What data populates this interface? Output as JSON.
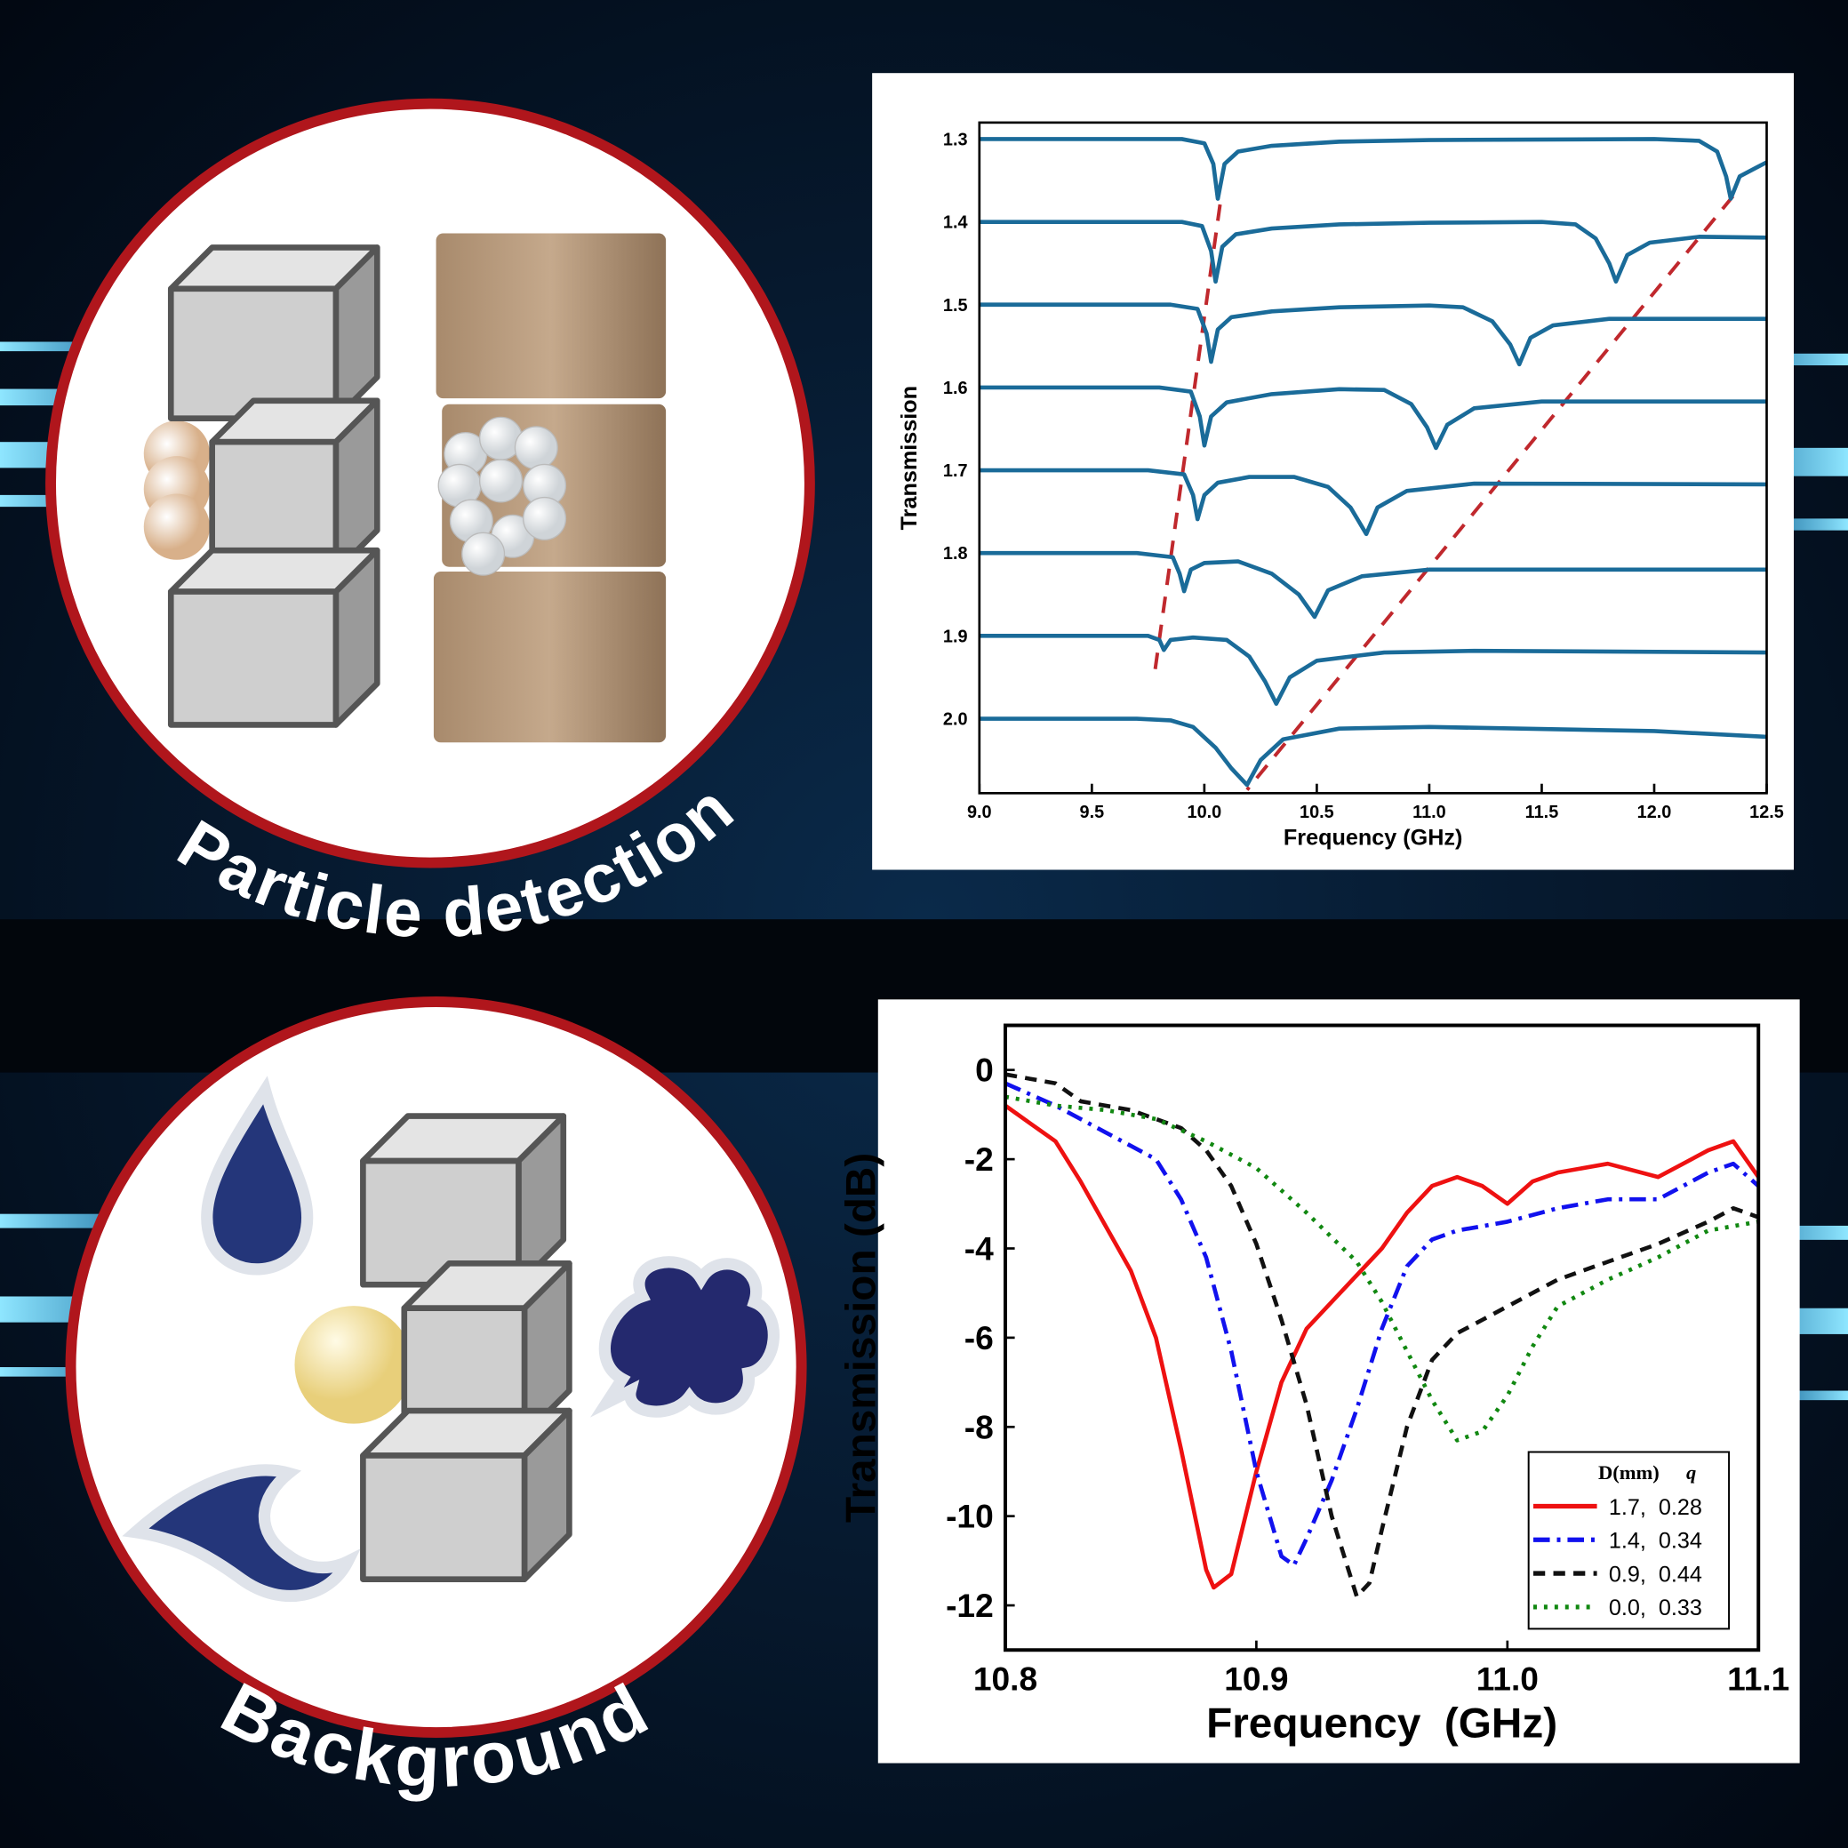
{
  "labels": [
    "Particle detection",
    "Background"
  ],
  "chart_data": [
    {
      "type": "line",
      "xlabel": "Frequency (GHz)",
      "ylabel": "Transmission",
      "color": "#1a6b99",
      "y_inverted": true,
      "xlim": [
        9.0,
        12.5
      ],
      "ylim": [
        1.28,
        2.09
      ],
      "xticks": [
        {
          "value": 9,
          "label": "9.0"
        },
        9.5,
        {
          "value": 10,
          "label": "10.0"
        },
        10.5,
        {
          "value": 11,
          "label": "11.0"
        },
        11.5,
        {
          "value": 12,
          "label": "12.0"
        },
        12.5
      ],
      "yticks": [
        1.3,
        1.4,
        1.5,
        1.6,
        1.7,
        1.8,
        1.9,
        {
          "value": 2,
          "label": "2.0"
        }
      ],
      "series": [
        {
          "x": [
            9.0,
            9.9,
            10.0,
            10.04,
            10.06,
            10.09,
            10.15,
            10.3,
            10.6,
            11.0,
            12.0,
            12.2,
            12.28,
            12.32,
            12.34,
            12.38,
            12.45,
            12.5
          ],
          "values": [
            1.3,
            1.3,
            1.305,
            1.33,
            1.372,
            1.33,
            1.315,
            1.308,
            1.303,
            1.301,
            1.3,
            1.302,
            1.315,
            1.345,
            1.372,
            1.345,
            1.335,
            1.328
          ]
        },
        {
          "x": [
            9.0,
            9.9,
            9.99,
            10.03,
            10.05,
            10.08,
            10.14,
            10.3,
            10.6,
            11.0,
            11.5,
            11.65,
            11.74,
            11.8,
            11.83,
            11.88,
            11.98,
            12.2,
            12.5
          ],
          "values": [
            1.4,
            1.4,
            1.405,
            1.435,
            1.472,
            1.43,
            1.415,
            1.408,
            1.403,
            1.401,
            1.4,
            1.403,
            1.42,
            1.45,
            1.472,
            1.44,
            1.425,
            1.418,
            1.419
          ]
        },
        {
          "x": [
            9.0,
            9.85,
            9.97,
            10.01,
            10.03,
            10.06,
            10.12,
            10.3,
            10.6,
            11.0,
            11.15,
            11.28,
            11.36,
            11.4,
            11.45,
            11.55,
            11.8,
            12.5
          ],
          "values": [
            1.5,
            1.5,
            1.505,
            1.535,
            1.569,
            1.53,
            1.515,
            1.508,
            1.503,
            1.501,
            1.503,
            1.52,
            1.548,
            1.572,
            1.54,
            1.525,
            1.517,
            1.517
          ]
        },
        {
          "x": [
            9.0,
            9.8,
            9.94,
            9.98,
            10.0,
            10.03,
            10.1,
            10.3,
            10.6,
            10.8,
            10.92,
            10.99,
            11.03,
            11.08,
            11.2,
            11.5,
            12.5
          ],
          "values": [
            1.6,
            1.6,
            1.605,
            1.635,
            1.67,
            1.635,
            1.618,
            1.608,
            1.602,
            1.603,
            1.62,
            1.648,
            1.673,
            1.645,
            1.625,
            1.617,
            1.617
          ]
        },
        {
          "x": [
            9.0,
            9.75,
            9.91,
            9.95,
            9.97,
            10.0,
            10.06,
            10.2,
            10.4,
            10.55,
            10.65,
            10.72,
            10.77,
            10.9,
            11.2,
            12.5
          ],
          "values": [
            1.7,
            1.7,
            1.705,
            1.73,
            1.759,
            1.73,
            1.715,
            1.708,
            1.708,
            1.72,
            1.745,
            1.777,
            1.745,
            1.725,
            1.716,
            1.717
          ]
        },
        {
          "x": [
            9.0,
            9.7,
            9.86,
            9.89,
            9.91,
            9.94,
            10.0,
            10.15,
            10.3,
            10.42,
            10.49,
            10.55,
            10.7,
            11.0,
            12.5
          ],
          "values": [
            1.8,
            1.8,
            1.805,
            1.825,
            1.846,
            1.82,
            1.812,
            1.81,
            1.825,
            1.85,
            1.877,
            1.845,
            1.828,
            1.82,
            1.82
          ]
        },
        {
          "x": [
            9.0,
            9.75,
            9.8,
            9.82,
            9.85,
            9.95,
            10.1,
            10.2,
            10.27,
            10.32,
            10.38,
            10.5,
            10.8,
            11.2,
            12.5
          ],
          "values": [
            1.9,
            1.9,
            1.905,
            1.917,
            1.905,
            1.902,
            1.905,
            1.925,
            1.955,
            1.982,
            1.95,
            1.93,
            1.92,
            1.918,
            1.92
          ]
        },
        {
          "x": [
            9.0,
            9.7,
            9.85,
            9.95,
            10.05,
            10.12,
            10.19,
            10.25,
            10.35,
            10.6,
            11.0,
            12.0,
            12.5
          ],
          "values": [
            2.0,
            2.0,
            2.002,
            2.01,
            2.035,
            2.06,
            2.08,
            2.05,
            2.025,
            2.012,
            2.01,
            2.015,
            2.022
          ]
        }
      ],
      "guides": [
        {
          "color": "#c0282d",
          "x": [
            10.07,
            9.78
          ],
          "values": [
            1.379,
            1.943
          ]
        },
        {
          "color": "#c0282d",
          "x": [
            12.35,
            10.19
          ],
          "values": [
            1.369,
            2.086
          ]
        }
      ]
    },
    {
      "type": "line",
      "xlabel": "Frequency  (GHz)",
      "ylabel": "Transmission (dB)",
      "xlim": [
        10.8,
        11.1
      ],
      "ylim": [
        -13,
        1
      ],
      "xticks": [
        10.8,
        10.9,
        {
          "value": 11,
          "label": "11.0"
        },
        11.1
      ],
      "yticks": [
        0,
        -2,
        -4,
        -6,
        -8,
        -10,
        -12
      ],
      "legend": "lower right",
      "legend_header": [
        "D(mm)",
        "q"
      ],
      "series": [
        {
          "name": "1.7,  0.28",
          "color": "#ee1111",
          "style": "solid",
          "x": [
            10.8,
            10.81,
            10.82,
            10.83,
            10.84,
            10.85,
            10.86,
            10.87,
            10.88,
            10.883,
            10.89,
            10.9,
            10.91,
            10.92,
            10.93,
            10.94,
            10.95,
            10.96,
            10.97,
            10.98,
            10.99,
            11.0,
            11.01,
            11.02,
            11.04,
            11.06,
            11.07,
            11.08,
            11.09,
            11.1
          ],
          "values": [
            -0.8,
            -1.2,
            -1.6,
            -2.5,
            -3.5,
            -4.5,
            -6,
            -8.5,
            -11.2,
            -11.6,
            -11.3,
            -9,
            -7,
            -5.8,
            -5.2,
            -4.6,
            -4.0,
            -3.2,
            -2.6,
            -2.4,
            -2.6,
            -3.0,
            -2.5,
            -2.3,
            -2.1,
            -2.4,
            -2.1,
            -1.8,
            -1.6,
            -2.4
          ]
        },
        {
          "name": "1.4,  0.34",
          "color": "#1111ee",
          "style": "dashdot",
          "x": [
            10.8,
            10.82,
            10.84,
            10.86,
            10.87,
            10.88,
            10.89,
            10.9,
            10.91,
            10.915,
            10.92,
            10.93,
            10.94,
            10.95,
            10.96,
            10.97,
            10.98,
            10.99,
            11.0,
            11.02,
            11.04,
            11.06,
            11.08,
            11.09,
            11.1
          ],
          "values": [
            -0.3,
            -0.8,
            -1.4,
            -2.0,
            -2.9,
            -4.2,
            -6.3,
            -9.0,
            -10.9,
            -11.1,
            -10.5,
            -9.2,
            -7.6,
            -5.8,
            -4.4,
            -3.8,
            -3.6,
            -3.5,
            -3.4,
            -3.1,
            -2.9,
            -2.9,
            -2.3,
            -2.1,
            -2.6
          ]
        },
        {
          "name": "0.9,  0.44",
          "color": "#111111",
          "style": "dash",
          "x": [
            10.8,
            10.81,
            10.82,
            10.83,
            10.85,
            10.87,
            10.88,
            10.89,
            10.9,
            10.91,
            10.92,
            10.93,
            10.94,
            10.945,
            10.95,
            10.96,
            10.97,
            10.98,
            10.99,
            11.0,
            11.02,
            11.04,
            11.06,
            11.08,
            11.09,
            11.1
          ],
          "values": [
            -0.1,
            -0.2,
            -0.3,
            -0.7,
            -0.9,
            -1.3,
            -1.8,
            -2.6,
            -3.9,
            -5.6,
            -7.5,
            -10.0,
            -11.8,
            -11.5,
            -10.3,
            -8.0,
            -6.5,
            -5.9,
            -5.6,
            -5.3,
            -4.7,
            -4.3,
            -3.9,
            -3.4,
            -3.1,
            -3.3
          ]
        },
        {
          "name": "0.0,  0.33",
          "color": "#118811",
          "style": "dot",
          "x": [
            10.8,
            10.82,
            10.84,
            10.86,
            10.88,
            10.9,
            10.92,
            10.94,
            10.95,
            10.96,
            10.97,
            10.98,
            10.99,
            11.0,
            11.01,
            11.02,
            11.04,
            11.06,
            11.08,
            11.1
          ],
          "values": [
            -0.6,
            -0.8,
            -0.9,
            -1.1,
            -1.6,
            -2.2,
            -3.2,
            -4.3,
            -5.2,
            -6.3,
            -7.4,
            -8.3,
            -8.1,
            -7.3,
            -6.2,
            -5.3,
            -4.7,
            -4.2,
            -3.6,
            -3.4
          ]
        }
      ]
    }
  ]
}
